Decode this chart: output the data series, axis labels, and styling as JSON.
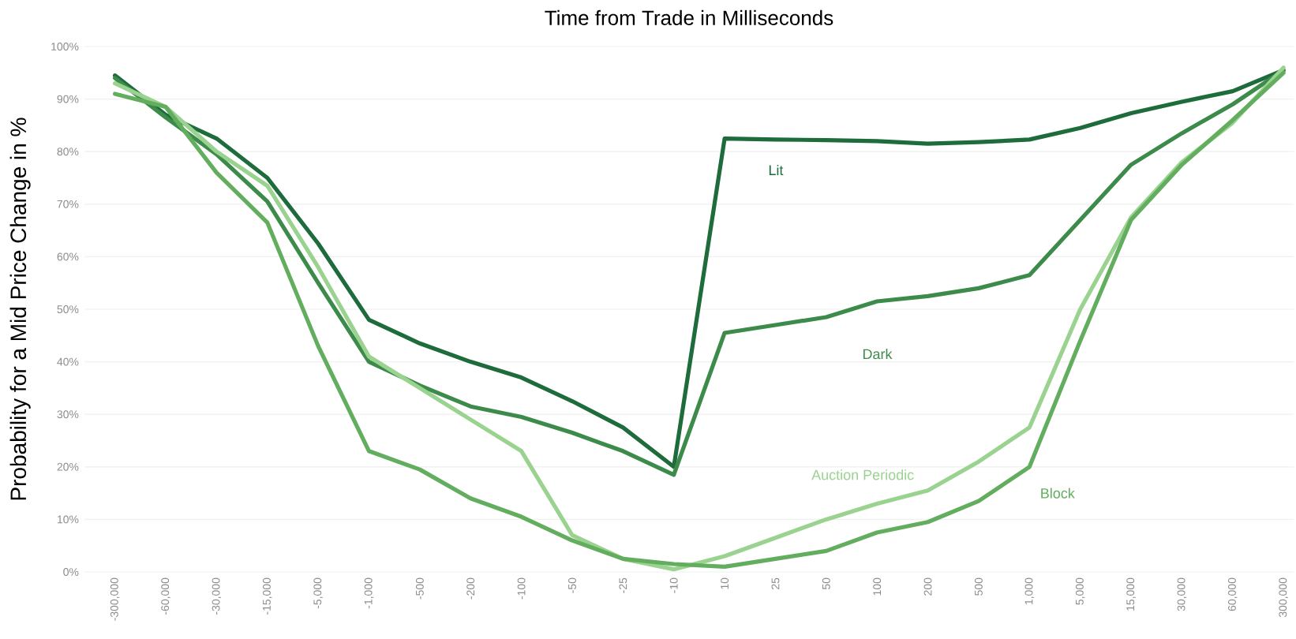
{
  "chart_data": {
    "type": "line",
    "xlabel": "Time from Trade in Milliseconds",
    "ylabel": "Probability for a Mid Price Change in %",
    "categories": [
      "-300,000",
      "-60,000",
      "-30,000",
      "-15,000",
      "-5,000",
      "-1,000",
      "-500",
      "-200",
      "-100",
      "-50",
      "-25",
      "-10",
      "10",
      "25",
      "50",
      "100",
      "200",
      "500",
      "1,000",
      "5,000",
      "15,000",
      "30,000",
      "60,000",
      "300,000"
    ],
    "series": [
      {
        "name": "Lit",
        "color": "#1e6b3b",
        "values": [
          94.5,
          87,
          82.5,
          75,
          62.5,
          48,
          43.5,
          40,
          37,
          32.5,
          27.5,
          20,
          82.5,
          82.3,
          82.2,
          82,
          81.5,
          81.8,
          82.3,
          84.5,
          87.3,
          89.5,
          91.5,
          95.5
        ]
      },
      {
        "name": "Dark",
        "color": "#3d8b4a",
        "values": [
          94,
          86.5,
          79.5,
          70.5,
          55,
          40,
          35.5,
          31.5,
          29.5,
          26.5,
          23,
          18.5,
          45.5,
          47,
          48.5,
          51.5,
          52.5,
          54,
          56.5,
          67,
          77.5,
          83.5,
          89,
          95.5
        ]
      },
      {
        "name": "Auction Periodic",
        "color": "#9ad28f",
        "values": [
          93,
          88.5,
          80,
          73.5,
          58,
          41,
          35,
          29,
          23,
          7,
          2.5,
          0.5,
          3,
          6.5,
          10,
          13,
          15.5,
          21,
          27.5,
          50,
          67.5,
          78,
          85.5,
          96
        ]
      },
      {
        "name": "Block",
        "color": "#62ad5e",
        "values": [
          91,
          88.5,
          76,
          66.5,
          43,
          23,
          19.5,
          14,
          10.5,
          6,
          2.5,
          1.5,
          1,
          2.5,
          4,
          7.5,
          9.5,
          13.5,
          20,
          44,
          67,
          77.5,
          86,
          95
        ]
      }
    ],
    "ylim": [
      0,
      100
    ],
    "yticks": [
      {
        "value": 0,
        "label": "0%"
      },
      {
        "value": 10,
        "label": "10%"
      },
      {
        "value": 20,
        "label": "20%"
      },
      {
        "value": 30,
        "label": "30%"
      },
      {
        "value": 40,
        "label": "40%"
      },
      {
        "value": 50,
        "label": "50%"
      },
      {
        "value": 60,
        "label": "60%"
      },
      {
        "value": 70,
        "label": "70%"
      },
      {
        "value": 80,
        "label": "80%"
      },
      {
        "value": 90,
        "label": "90%"
      },
      {
        "value": 100,
        "label": "100%"
      }
    ],
    "grid": "y",
    "line_style": "solid"
  }
}
